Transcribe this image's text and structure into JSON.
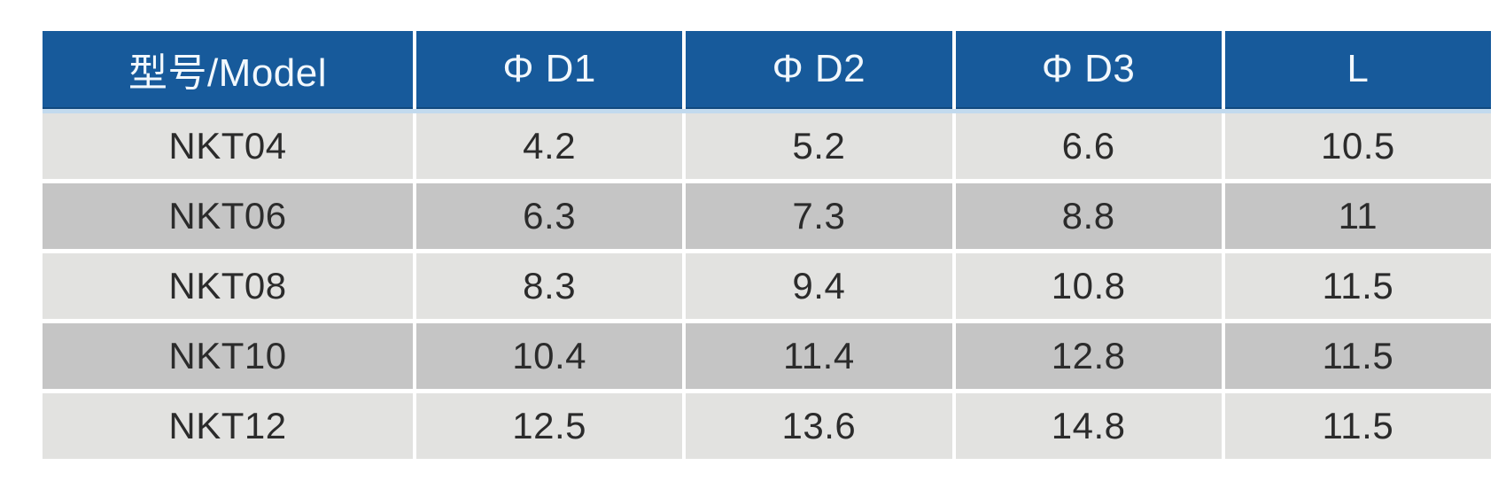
{
  "page": {
    "background": "#ffffff",
    "description_label": "product-dimension-spec-table"
  },
  "table": {
    "header": {
      "model": "型号/Model",
      "d1": "Φ D1",
      "d2": "Φ D2",
      "d3": "Φ D3",
      "l": "L"
    },
    "rows": [
      {
        "model": "NKT04",
        "d1": "4.2",
        "d2": "5.2",
        "d3": "6.6",
        "l": "10.5"
      },
      {
        "model": "NKT06",
        "d1": "6.3",
        "d2": "7.3",
        "d3": "8.8",
        "l": "11"
      },
      {
        "model": "NKT08",
        "d1": "8.3",
        "d2": "9.4",
        "d3": "10.8",
        "l": "11.5"
      },
      {
        "model": "NKT10",
        "d1": "10.4",
        "d2": "11.4",
        "d3": "12.8",
        "l": "11.5"
      },
      {
        "model": "NKT12",
        "d1": "12.5",
        "d2": "13.6",
        "d3": "14.8",
        "l": "11.5"
      }
    ],
    "column_keys": [
      "model",
      "d1",
      "d2",
      "d3",
      "l"
    ]
  },
  "colors": {
    "header_bg": "#175a9b",
    "header_bottom_edge": "#11497e",
    "header_text": "#f2f8fd",
    "row_light": "#e2e2e0",
    "row_dark": "#c5c5c5",
    "separator": "#ffffff",
    "header_separator": "#c2daee",
    "body_text": "#2b2b2b",
    "page_bg": "#ffffff"
  }
}
